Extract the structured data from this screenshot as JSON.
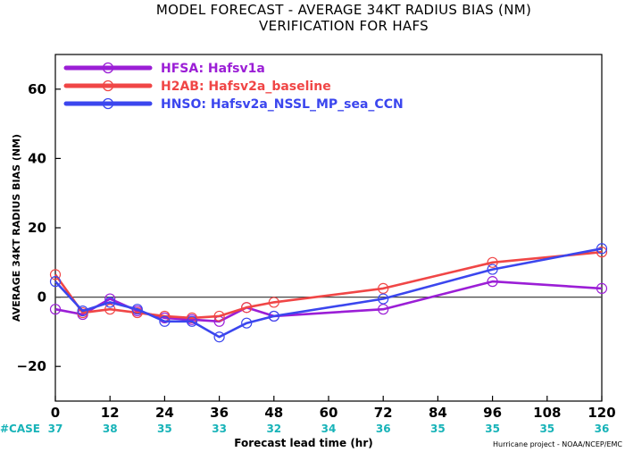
{
  "chart_data": {
    "type": "line",
    "title": "MODEL FORECAST - AVERAGE 34KT RADIUS BIAS (NM)",
    "subtitle": "VERIFICATION FOR HAFS",
    "xlabel": "Forecast lead time (hr)",
    "ylabel": "AVERAGE 34KT RADIUS BIAS (NM)",
    "xlim": [
      0,
      120
    ],
    "ylim": [
      -30,
      70
    ],
    "x_ticks": [
      0,
      12,
      24,
      36,
      48,
      60,
      72,
      84,
      96,
      108,
      120
    ],
    "y_ticks": [
      -20,
      0,
      20,
      40,
      60
    ],
    "y_tick_labels": [
      "−20",
      "0",
      "20",
      "40",
      "60"
    ],
    "zero_line": true,
    "legend_position": "top-left",
    "case_label": "#CASE",
    "case_x": [
      0,
      12,
      24,
      36,
      48,
      60,
      72,
      84,
      96,
      108,
      120
    ],
    "case_counts": [
      "37",
      "38",
      "35",
      "33",
      "32",
      "34",
      "36",
      "35",
      "35",
      "35",
      "36"
    ],
    "credit": "Hurricane project - NOAA/NCEP/EMC",
    "series": [
      {
        "code": "HFSA",
        "label": "HFSA: Hafsv1a",
        "color": "#9b1ed6",
        "x": [
          0,
          6,
          12,
          18,
          24,
          30,
          36,
          42,
          48,
          72,
          96,
          120
        ],
        "y": [
          -3.5,
          -5,
          -0.5,
          -4,
          -6,
          -6.5,
          -7,
          -3,
          -5.5,
          -3.5,
          4.5,
          2.5
        ]
      },
      {
        "code": "H2AB",
        "label": "H2AB: Hafsv2a_baseline",
        "color": "#f04646",
        "x": [
          0,
          6,
          12,
          18,
          24,
          30,
          36,
          42,
          48,
          72,
          96,
          120
        ],
        "y": [
          6.5,
          -4.5,
          -3.5,
          -4.5,
          -5.5,
          -6,
          -5.5,
          -3,
          -1.5,
          2.5,
          10,
          13
        ]
      },
      {
        "code": "HNSO",
        "label": "HNSO: Hafsv2a_NSSL_MP_sea_CCN",
        "color": "#3b46ee",
        "x": [
          0,
          6,
          12,
          18,
          24,
          30,
          36,
          42,
          48,
          72,
          96,
          120
        ],
        "y": [
          4.5,
          -4,
          -1.5,
          -3.5,
          -7,
          -7,
          -11.5,
          -7.5,
          -5.5,
          -0.5,
          8,
          14
        ]
      }
    ]
  }
}
